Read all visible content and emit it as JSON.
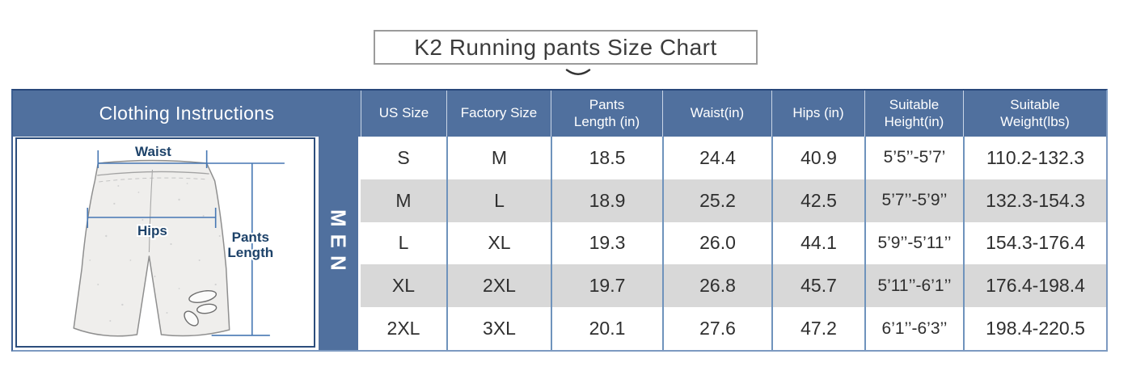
{
  "title": {
    "text": "K2 Running pants Size Chart"
  },
  "table": {
    "clothing_header": "Clothing Instructions",
    "gender_label": "MEN",
    "columns": [
      "US Size",
      "Factory Size",
      "Pants Length (in)",
      "Waist(in)",
      "Hips (in)",
      "Suitable Height(in)",
      "Suitable Weight(lbs)"
    ],
    "rows": [
      [
        "S",
        "M",
        "18.5",
        "24.4",
        "40.9",
        "5’5’’-5’7’",
        "110.2-132.3"
      ],
      [
        "M",
        "L",
        "18.9",
        "25.2",
        "42.5",
        "5’7’’-5’9’’",
        "132.3-154.3"
      ],
      [
        "L",
        "XL",
        "19.3",
        "26.0",
        "44.1",
        "5’9’’-5’11’’",
        "154.3-176.4"
      ],
      [
        "XL",
        "2XL",
        "19.7",
        "26.8",
        "45.7",
        "5’11’’-6’1’’",
        "176.4-198.4"
      ],
      [
        "2XL",
        "3XL",
        "20.1",
        "27.6",
        "47.2",
        "6’1’’-6’3’’",
        "198.4-220.5"
      ]
    ]
  },
  "diagram": {
    "waist_label": "Waist",
    "hips_label": "Hips",
    "pants_length_line1": "Pants",
    "pants_length_line2": "Length"
  },
  "colors": {
    "header_blue": "#50709e",
    "row_stripe": "#d8d8d8",
    "grid_line": "#6f93bc",
    "measure_line_blue": "#4677b3",
    "label_navy": "#1d4269",
    "border_dark": "#27477a",
    "border_light": "#7d9ac1",
    "title_border_gray": "#9b9b9b"
  }
}
